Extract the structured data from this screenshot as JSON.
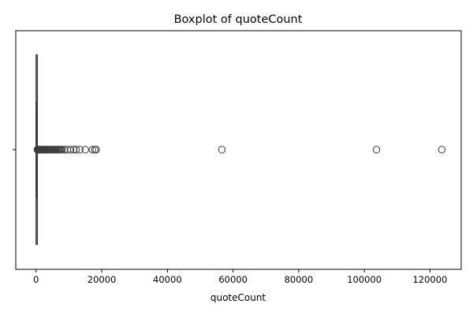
{
  "chart_data": {
    "type": "boxplot",
    "title": "Boxplot of quoteCount",
    "xlabel": "quoteCount",
    "ylabel": "",
    "orientation": "horizontal",
    "xlim": [
      -6200,
      129500
    ],
    "xticks": [
      0,
      20000,
      40000,
      60000,
      80000,
      100000,
      120000
    ],
    "xtick_labels": [
      "0",
      "20000",
      "40000",
      "60000",
      "80000",
      "100000",
      "120000"
    ],
    "ytick_labels": [
      ""
    ],
    "grid": false,
    "legend": "none",
    "box": {
      "q1": 0,
      "median": 20,
      "q3": 150,
      "whisker_low": 0,
      "whisker_high": 370
    },
    "outliers": [
      380,
      420,
      480,
      550,
      620,
      700,
      790,
      880,
      980,
      1100,
      1250,
      1400,
      1550,
      1700,
      1850,
      2000,
      2200,
      2400,
      2600,
      2800,
      3000,
      3250,
      3500,
      3750,
      4000,
      4300,
      4600,
      4900,
      5200,
      5500,
      5800,
      6100,
      6400,
      6700,
      7000,
      7300,
      7600,
      8000,
      8700,
      9500,
      10500,
      11500,
      12200,
      13300,
      15000,
      17200,
      17900,
      18300,
      56600,
      103700,
      123600
    ],
    "colors": {
      "line": "#3d3d3d",
      "box_fill": "#1f77b4",
      "axes": "#000000"
    }
  }
}
